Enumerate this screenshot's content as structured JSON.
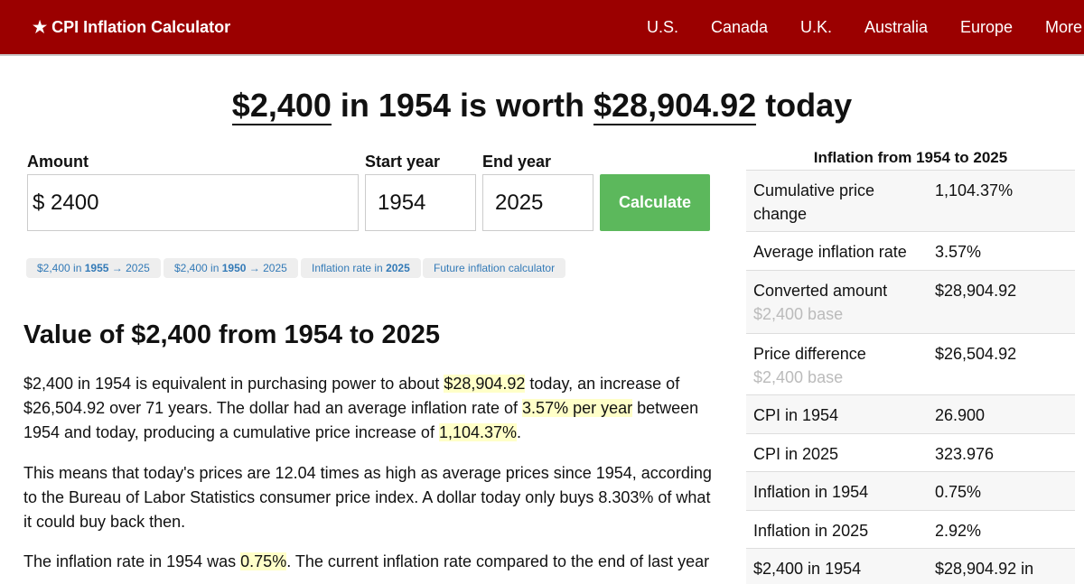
{
  "header": {
    "brand": "★ CPI Inflation Calculator",
    "nav": [
      "U.S.",
      "Canada",
      "U.K.",
      "Australia",
      "Europe",
      "More"
    ]
  },
  "title": {
    "amount": "$2,400",
    "mid": " in 1954 is worth ",
    "result": "$28,904.92",
    "end": " today"
  },
  "form": {
    "amount_label": "Amount",
    "currency": "$",
    "amount": "2400",
    "start_label": "Start year",
    "start": "1954",
    "end_label": "End year",
    "end": "2025",
    "calculate": "Calculate"
  },
  "links": [
    {
      "pre": "$2,400 in ",
      "bold": "1955",
      "post": " → 2025"
    },
    {
      "pre": "$2,400 in ",
      "bold": "1950",
      "post": " → 2025"
    },
    {
      "pre": "Inflation rate in ",
      "bold": "2025",
      "post": ""
    },
    {
      "pre": "Future inflation calculator",
      "bold": "",
      "post": ""
    }
  ],
  "article": {
    "heading": "Value of $2,400 from 1954 to 2025",
    "p1": [
      "$2,400 in 1954 is equivalent in purchasing power to about ",
      "$28,904.92",
      " today, an increase of $26,504.92 over 71 years. The dollar had an average inflation rate of ",
      "3.57% per year",
      " between 1954 and today, producing a cumulative price increase of ",
      "1,104.37%",
      "."
    ],
    "p2": "This means that today's prices are 12.04 times as high as average prices since 1954, according to the Bureau of Labor Statistics consumer price index. A dollar today only buys 8.303% of what it could buy back then.",
    "p3": [
      "The inflation rate in 1954 was ",
      "0.75%",
      ". The current inflation rate compared to the end of last year"
    ]
  },
  "table": {
    "title": "Inflation from 1954 to 2025",
    "rows": [
      {
        "k": "Cumulative price change",
        "v": "1,104.37%"
      },
      {
        "k": "Average inflation rate",
        "v": "3.57%"
      },
      {
        "k": "Converted amount",
        "sub": "$2,400 base",
        "v": "$28,904.92"
      },
      {
        "k": "Price difference",
        "sub": "$2,400 base",
        "v": "$26,504.92"
      },
      {
        "k": "CPI in 1954",
        "v": "26.900"
      },
      {
        "k": "CPI in 2025",
        "v": "323.976"
      },
      {
        "k": "Inflation in 1954",
        "v": "0.75%"
      },
      {
        "k": "Inflation in 2025",
        "v": "2.92%"
      },
      {
        "k": "$2,400 in 1954",
        "v": "$28,904.92 in"
      }
    ]
  }
}
